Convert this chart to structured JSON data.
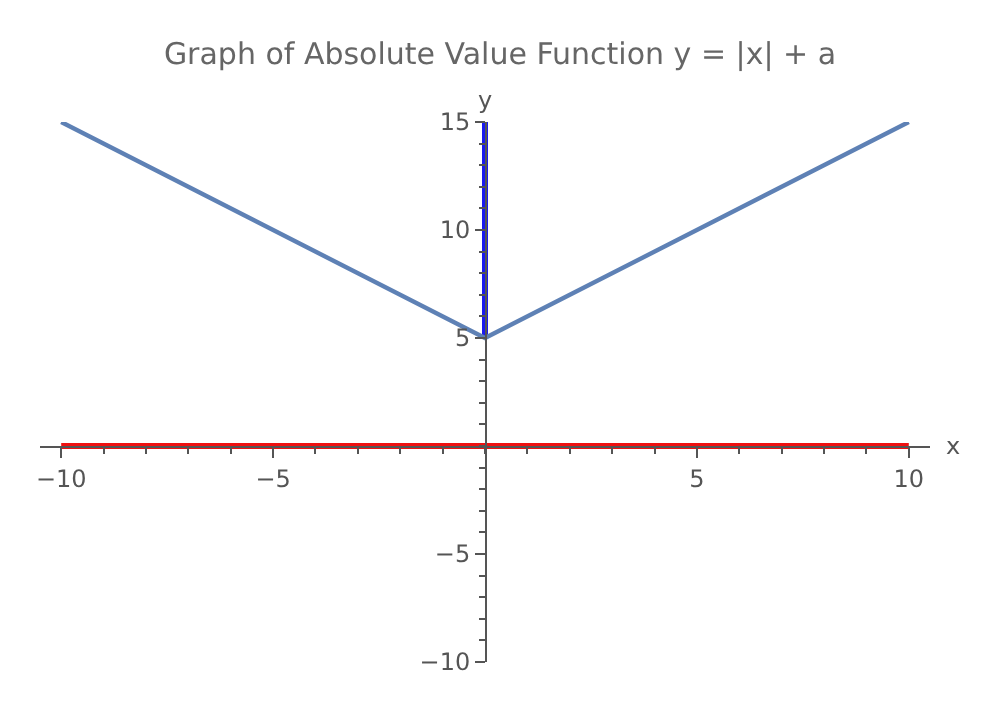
{
  "chart_data": {
    "type": "line",
    "title": "Graph of Absolute Value Function y = |x| + a",
    "xlabel": "x",
    "ylabel": "y",
    "series": [
      {
        "color": "#ee1111",
        "x": [
          -10,
          10
        ],
        "values": [
          0,
          0
        ]
      },
      {
        "color": "#1a1aee",
        "x": [
          0,
          0
        ],
        "values": [
          5,
          15
        ]
      },
      {
        "color": "#5e81b5",
        "x": [
          -10,
          0,
          10
        ],
        "values": [
          15,
          5,
          15
        ]
      }
    ],
    "xlim": [
      -10.5,
      10.5
    ],
    "ylim": [
      -10,
      15
    ],
    "xticks": [
      {
        "value": -10,
        "label": "−10"
      },
      {
        "value": -5,
        "label": "−5"
      },
      5,
      10
    ],
    "yticks": [
      {
        "value": -10,
        "label": "−10"
      },
      {
        "value": -5,
        "label": "−5"
      },
      5,
      10,
      15
    ],
    "marker": "none",
    "line_style": "solid"
  }
}
